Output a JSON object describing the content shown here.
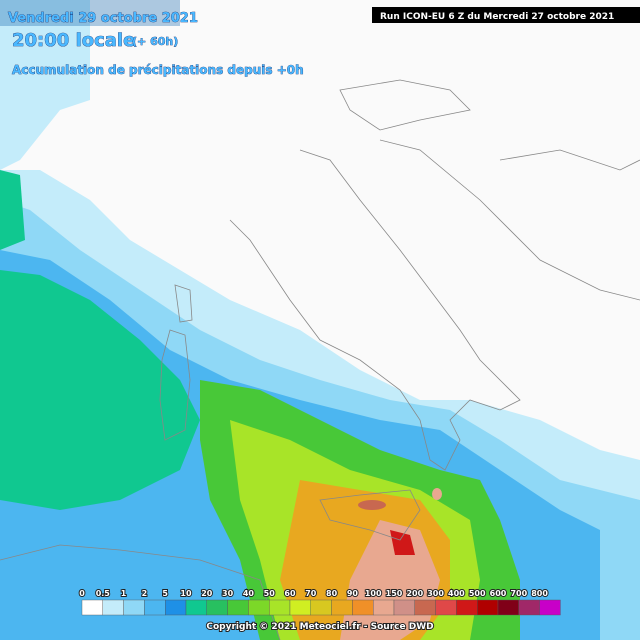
{
  "header": {
    "date": "Vendredi 29 octobre 2021",
    "time": "20:00 locale",
    "lead": "(+ 60h)",
    "field": "Accumulation de précipitations depuis +0h",
    "run": "Run ICON-EU 6 Z du Mercredi 27 octobre 2021"
  },
  "legend": {
    "items": [
      {
        "label": "0",
        "color": "#ffffff"
      },
      {
        "label": "0.5",
        "color": "#c4ecfa"
      },
      {
        "label": "1",
        "color": "#8fd8f6"
      },
      {
        "label": "2",
        "color": "#4cb6f0"
      },
      {
        "label": "5",
        "color": "#1e90e6"
      },
      {
        "label": "10",
        "color": "#10c890"
      },
      {
        "label": "20",
        "color": "#28c060"
      },
      {
        "label": "30",
        "color": "#48c838"
      },
      {
        "label": "40",
        "color": "#7cd828"
      },
      {
        "label": "50",
        "color": "#a8e428"
      },
      {
        "label": "60",
        "color": "#d0ee22"
      },
      {
        "label": "70",
        "color": "#d8c820"
      },
      {
        "label": "80",
        "color": "#e8a820"
      },
      {
        "label": "90",
        "color": "#f09028"
      },
      {
        "label": "100",
        "color": "#e8a890"
      },
      {
        "label": "150",
        "color": "#d09088"
      },
      {
        "label": "200",
        "color": "#c86850"
      },
      {
        "label": "300",
        "color": "#e04848"
      },
      {
        "label": "400",
        "color": "#d01818"
      },
      {
        "label": "500",
        "color": "#b00000"
      },
      {
        "label": "600",
        "color": "#800018"
      },
      {
        "label": "700",
        "color": "#a02868"
      },
      {
        "label": "800",
        "color": "#c800c8"
      }
    ]
  },
  "footer": {
    "copyright": "Copyright © 2021 Meteociel.fr - Source DWD"
  }
}
